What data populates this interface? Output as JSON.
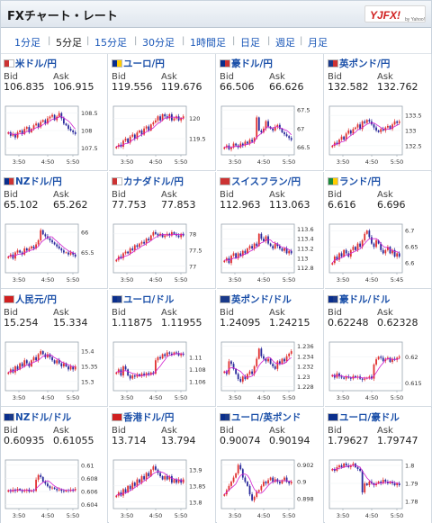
{
  "header": {
    "title": "FXチャート・レート",
    "logo_text": "YJFX!",
    "logo_subtext": "by Yahoo!"
  },
  "tabs": [
    {
      "label": "1分足",
      "active": false
    },
    {
      "label": "5分足",
      "active": true
    },
    {
      "label": "15分足",
      "active": false
    },
    {
      "label": "30分足",
      "active": false
    },
    {
      "label": "1時間足",
      "active": false
    },
    {
      "label": "日足",
      "active": false
    },
    {
      "label": "週足",
      "active": false
    },
    {
      "label": "月足",
      "active": false
    }
  ],
  "labels": {
    "bid": "Bid",
    "ask": "Ask"
  },
  "colors": {
    "up": "#e03030",
    "down": "#2a2a9c",
    "ma": "#d020d0",
    "link": "#1a4fa8"
  },
  "pairs": [
    {
      "name": "米ドル/円",
      "flag": [
        "#c33",
        "#fff"
      ],
      "bid": "106.835",
      "ask": "106.915",
      "chart_data": {
        "type": "candlestick",
        "x_ticks": [
          "3:50",
          "4:50",
          "5:50"
        ],
        "y_ticks": [
          "108.5",
          "108",
          "107.5"
        ],
        "ylim": [
          107.3,
          108.7
        ],
        "close": [
          107.95,
          107.85,
          107.9,
          107.8,
          107.95,
          108.0,
          107.9,
          108.05,
          108.1,
          107.95,
          108.05,
          108.15,
          108.2,
          108.1,
          108.25,
          108.3,
          108.2,
          108.35,
          108.4,
          108.45,
          108.3,
          108.4,
          108.5,
          108.35,
          108.2,
          108.15,
          108.05,
          108.0,
          107.95,
          107.9
        ]
      }
    },
    {
      "name": "ユーロ/円",
      "flag": [
        "#0a2e8c",
        "#ffcc00"
      ],
      "bid": "119.556",
      "ask": "119.676",
      "chart_data": {
        "type": "candlestick",
        "x_ticks": [
          "3:50",
          "4:50",
          "5:50"
        ],
        "y_ticks": [
          "120",
          "119.5"
        ],
        "ylim": [
          119.1,
          120.3
        ],
        "close": [
          119.3,
          119.35,
          119.3,
          119.45,
          119.5,
          119.4,
          119.55,
          119.6,
          119.5,
          119.65,
          119.7,
          119.6,
          119.75,
          119.8,
          119.7,
          119.85,
          119.9,
          119.95,
          120.05,
          119.95,
          120.1,
          120.05,
          120.0,
          120.1,
          119.95,
          120.0,
          120.05,
          119.95,
          120.0,
          120.05
        ]
      }
    },
    {
      "name": "豪ドル/円",
      "flag": [
        "#0a2e8c",
        "#c33"
      ],
      "bid": "66.506",
      "ask": "66.626",
      "chart_data": {
        "type": "candlestick",
        "x_ticks": [
          "3:50",
          "4:50",
          "5:50"
        ],
        "y_ticks": [
          "67.5",
          "67",
          "66.5"
        ],
        "ylim": [
          66.3,
          67.6
        ],
        "close": [
          66.5,
          66.55,
          66.45,
          66.5,
          66.6,
          66.55,
          66.5,
          66.6,
          66.55,
          66.65,
          66.6,
          66.7,
          66.65,
          66.75,
          67.3,
          66.95,
          66.9,
          67.0,
          67.2,
          67.05,
          67.0,
          66.95,
          67.05,
          67.1,
          67.0,
          66.9,
          66.85,
          66.8,
          66.75,
          66.7
        ]
      }
    },
    {
      "name": "英ポンド/円",
      "flag": [
        "#1a3a8a",
        "#c33"
      ],
      "bid": "132.582",
      "ask": "132.762",
      "chart_data": {
        "type": "candlestick",
        "x_ticks": [
          "3:50",
          "4:50",
          "5:50"
        ],
        "y_ticks": [
          "133.5",
          "133",
          "132.5"
        ],
        "ylim": [
          132.2,
          133.8
        ],
        "close": [
          132.5,
          132.6,
          132.55,
          132.7,
          132.8,
          132.7,
          132.9,
          133.0,
          132.9,
          133.05,
          133.1,
          133.2,
          133.05,
          133.3,
          133.25,
          133.35,
          133.3,
          133.2,
          133.1,
          133.0,
          132.95,
          133.05,
          133.0,
          133.1,
          133.15,
          133.05,
          133.2,
          133.3,
          133.25,
          133.3
        ]
      }
    },
    {
      "name": "NZドル/円",
      "flag": [
        "#0a2e8c",
        "#c33"
      ],
      "bid": "65.102",
      "ask": "65.262",
      "chart_data": {
        "type": "candlestick",
        "x_ticks": [
          "3:50",
          "4:50",
          "5:50"
        ],
        "y_ticks": [
          "66",
          "65.5"
        ],
        "ylim": [
          65.0,
          66.2
        ],
        "close": [
          65.4,
          65.45,
          65.35,
          65.5,
          65.55,
          65.5,
          65.45,
          65.6,
          65.55,
          65.6,
          65.65,
          65.6,
          65.7,
          65.8,
          66.05,
          65.95,
          65.9,
          65.85,
          65.8,
          65.75,
          65.7,
          65.65,
          65.6,
          65.55,
          65.5,
          65.5,
          65.45,
          65.5,
          65.45,
          65.4
        ]
      }
    },
    {
      "name": "カナダドル/円",
      "flag": [
        "#c33",
        "#fff"
      ],
      "bid": "77.753",
      "ask": "77.853",
      "chart_data": {
        "type": "candlestick",
        "x_ticks": [
          "3:50",
          "4:50",
          "5:50"
        ],
        "y_ticks": [
          "78",
          "77.5",
          "77"
        ],
        "ylim": [
          76.8,
          78.3
        ],
        "close": [
          77.2,
          77.3,
          77.25,
          77.4,
          77.45,
          77.4,
          77.55,
          77.5,
          77.65,
          77.6,
          77.7,
          77.75,
          77.7,
          77.85,
          77.8,
          77.95,
          78.05,
          78.0,
          77.95,
          78.0,
          77.9,
          77.95,
          78.0,
          77.95,
          78.05,
          78.0,
          77.95,
          77.9,
          78.0,
          77.95
        ]
      }
    },
    {
      "name": "スイスフラン/円",
      "flag": [
        "#c33",
        "#c33"
      ],
      "bid": "112.963",
      "ask": "113.063",
      "chart_data": {
        "type": "candlestick",
        "x_ticks": [
          "3:50",
          "4:50",
          "5:50"
        ],
        "y_ticks": [
          "113.6",
          "113.4",
          "113.2",
          "113",
          "112.8"
        ],
        "ylim": [
          112.7,
          113.7
        ],
        "close": [
          112.95,
          113.0,
          112.9,
          113.05,
          113.1,
          113.0,
          113.1,
          113.05,
          113.15,
          113.1,
          113.2,
          113.25,
          113.2,
          113.3,
          113.25,
          113.5,
          113.4,
          113.35,
          113.45,
          113.3,
          113.25,
          113.2,
          113.3,
          113.25,
          113.2,
          113.15,
          113.2,
          113.1,
          113.15,
          113.1
        ]
      }
    },
    {
      "name": "ランド/円",
      "flag": [
        "#1a8a3a",
        "#ffcc00"
      ],
      "bid": "6.616",
      "ask": "6.696",
      "chart_data": {
        "type": "candlestick",
        "x_ticks": [
          "3:50",
          "4:50",
          "5:45"
        ],
        "y_ticks": [
          "6.7",
          "6.65",
          "6.6"
        ],
        "ylim": [
          6.57,
          6.72
        ],
        "close": [
          6.6,
          6.62,
          6.61,
          6.63,
          6.62,
          6.64,
          6.63,
          6.62,
          6.64,
          6.65,
          6.64,
          6.66,
          6.65,
          6.67,
          6.69,
          6.7,
          6.68,
          6.66,
          6.65,
          6.67,
          6.66,
          6.64,
          6.63,
          6.64,
          6.65,
          6.63,
          6.64,
          6.62,
          6.63,
          6.62
        ]
      }
    },
    {
      "name": "人民元/円",
      "flag": [
        "#d02020",
        "#d02020"
      ],
      "bid": "15.254",
      "ask": "15.334",
      "chart_data": {
        "type": "candlestick",
        "x_ticks": [
          "3:50",
          "4:50",
          "5:50"
        ],
        "y_ticks": [
          "15.4",
          "15.35",
          "15.3"
        ],
        "ylim": [
          15.27,
          15.43
        ],
        "close": [
          15.33,
          15.34,
          15.33,
          15.35,
          15.34,
          15.36,
          15.35,
          15.37,
          15.36,
          15.35,
          15.37,
          15.38,
          15.37,
          15.39,
          15.4,
          15.39,
          15.38,
          15.39,
          15.38,
          15.37,
          15.36,
          15.37,
          15.36,
          15.35,
          15.36,
          15.35,
          15.34,
          15.35,
          15.34,
          15.35
        ]
      }
    },
    {
      "name": "ユーロ/ドル",
      "flag": [
        "#0a2e8c",
        "#1a3a8a"
      ],
      "bid": "1.11875",
      "ask": "1.11955",
      "chart_data": {
        "type": "candlestick",
        "x_ticks": [
          "3:50",
          "4:50",
          "5:50"
        ],
        "y_ticks": [
          "1.11",
          "1.108",
          "1.106"
        ],
        "ylim": [
          1.1045,
          1.1125
        ],
        "close": [
          1.1075,
          1.108,
          1.107,
          1.1085,
          1.108,
          1.107,
          1.1065,
          1.107,
          1.1068,
          1.1072,
          1.1069,
          1.1073,
          1.107,
          1.1074,
          1.1071,
          1.1075,
          1.1073,
          1.1095,
          1.11,
          1.1098,
          1.1105,
          1.1102,
          1.1108,
          1.1106,
          1.1104,
          1.1108,
          1.1107,
          1.1103,
          1.1106,
          1.1104
        ]
      }
    },
    {
      "name": "英ポンド/ドル",
      "flag": [
        "#1a3a8a",
        "#1a3a8a"
      ],
      "bid": "1.24095",
      "ask": "1.24215",
      "chart_data": {
        "type": "candlestick",
        "x_ticks": [
          "3:50",
          "4:50",
          "5:50"
        ],
        "y_ticks": [
          "1.236",
          "1.234",
          "1.232",
          "1.23",
          "1.228"
        ],
        "ylim": [
          1.2272,
          1.2368
        ],
        "close": [
          1.231,
          1.2305,
          1.233,
          1.2325,
          1.2315,
          1.2305,
          1.2295,
          1.229,
          1.23,
          1.2295,
          1.2305,
          1.231,
          1.2305,
          1.232,
          1.2335,
          1.2355,
          1.234,
          1.2335,
          1.233,
          1.2335,
          1.2325,
          1.232,
          1.2315,
          1.233,
          1.2325,
          1.2335,
          1.233,
          1.234,
          1.2345,
          1.235
        ]
      }
    },
    {
      "name": "豪ドル/ドル",
      "flag": [
        "#0a2e8c",
        "#1a3a8a"
      ],
      "bid": "0.62248",
      "ask": "0.62328",
      "chart_data": {
        "type": "candlestick",
        "x_ticks": [
          "3:50",
          "4:50",
          "5:50"
        ],
        "y_ticks": [
          "0.62",
          "0.615"
        ],
        "ylim": [
          0.6135,
          0.6228
        ],
        "close": [
          0.6165,
          0.616,
          0.6168,
          0.6162,
          0.616,
          0.6158,
          0.6162,
          0.616,
          0.6158,
          0.6163,
          0.616,
          0.6162,
          0.6158,
          0.6156,
          0.6158,
          0.616,
          0.6162,
          0.6158,
          0.6185,
          0.6195,
          0.62,
          0.6198,
          0.6192,
          0.6196,
          0.6198,
          0.619,
          0.6196,
          0.6194,
          0.6198,
          0.62
        ]
      }
    },
    {
      "name": "NZドル/ドル",
      "flag": [
        "#0a2e8c",
        "#1a3a8a"
      ],
      "bid": "0.60935",
      "ask": "0.61055",
      "chart_data": {
        "type": "candlestick",
        "x_ticks": [
          "3:50",
          "4:50",
          "5:50"
        ],
        "y_ticks": [
          "0.61",
          "0.608",
          "0.606",
          "0.604"
        ],
        "ylim": [
          0.6034,
          0.6108
        ],
        "close": [
          0.6062,
          0.606,
          0.6063,
          0.6061,
          0.6064,
          0.6062,
          0.606,
          0.6061,
          0.6063,
          0.606,
          0.6062,
          0.6061,
          0.6078,
          0.6085,
          0.6082,
          0.6075,
          0.6072,
          0.6068,
          0.6065,
          0.6066,
          0.6064,
          0.6062,
          0.6063,
          0.6061,
          0.606,
          0.6062,
          0.6061,
          0.6063,
          0.6062,
          0.6064
        ]
      }
    },
    {
      "name": "香港ドル/円",
      "flag": [
        "#d02020",
        "#d02020"
      ],
      "bid": "13.714",
      "ask": "13.794",
      "chart_data": {
        "type": "candlestick",
        "x_ticks": [
          "3:50",
          "4:50",
          "5:50"
        ],
        "y_ticks": [
          "13.9",
          "13.85",
          "13.8"
        ],
        "ylim": [
          13.78,
          13.93
        ],
        "close": [
          13.82,
          13.83,
          13.82,
          13.84,
          13.83,
          13.85,
          13.84,
          13.86,
          13.85,
          13.87,
          13.86,
          13.88,
          13.87,
          13.89,
          13.88,
          13.9,
          13.91,
          13.9,
          13.89,
          13.88,
          13.87,
          13.88,
          13.87,
          13.88,
          13.86,
          13.87,
          13.86,
          13.87,
          13.86,
          13.87
        ]
      }
    },
    {
      "name": "ユーロ/英ポンド",
      "flag": [
        "#0a2e8c",
        "#1a3a8a"
      ],
      "bid": "0.90074",
      "ask": "0.90194",
      "chart_data": {
        "type": "candlestick",
        "x_ticks": [
          "3:50",
          "4:50",
          "5:50"
        ],
        "y_ticks": [
          "0.902",
          "0.9",
          "0.898"
        ],
        "ylim": [
          0.8968,
          0.9026
        ],
        "close": [
          0.8985,
          0.899,
          0.8995,
          0.9,
          0.9005,
          0.901,
          0.902,
          0.9015,
          0.9005,
          0.9,
          0.8995,
          0.8985,
          0.8978,
          0.8982,
          0.8988,
          0.899,
          0.8995,
          0.9,
          0.8998,
          0.9002,
          0.9005,
          0.9,
          0.9003,
          0.9,
          0.8998,
          0.9002,
          0.9005,
          0.9,
          0.8998,
          0.9
        ]
      }
    },
    {
      "name": "ユーロ/豪ドル",
      "flag": [
        "#0a2e8c",
        "#0a2e8c"
      ],
      "bid": "1.79627",
      "ask": "1.79747",
      "chart_data": {
        "type": "candlestick",
        "x_ticks": [
          "3:50",
          "4:50",
          "5:50"
        ],
        "y_ticks": [
          "1.8",
          "1.79",
          "1.78"
        ],
        "ylim": [
          1.776,
          1.803
        ],
        "close": [
          1.798,
          1.797,
          1.799,
          1.8,
          1.799,
          1.801,
          1.8,
          1.799,
          1.8,
          1.801,
          1.799,
          1.798,
          1.797,
          1.785,
          1.79,
          1.789,
          1.791,
          1.79,
          1.789,
          1.79,
          1.791,
          1.79,
          1.792,
          1.791,
          1.79,
          1.791,
          1.79,
          1.789,
          1.79,
          1.789
        ]
      }
    }
  ]
}
